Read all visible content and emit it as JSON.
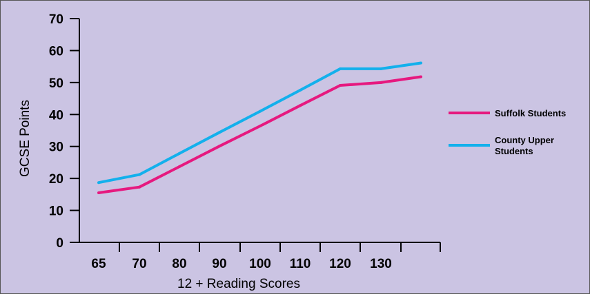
{
  "chart_data": {
    "type": "line",
    "x_tick_labels": [
      "65",
      "70",
      "80",
      "90",
      "100",
      "110",
      "120",
      "130"
    ],
    "x": [
      65,
      70,
      80,
      90,
      100,
      110,
      120,
      130,
      140
    ],
    "y_ticks": [
      0,
      10,
      20,
      30,
      40,
      50,
      60,
      70
    ],
    "ylim": [
      0,
      70
    ],
    "xlabel": "12 + Reading Scores",
    "ylabel": "GCSE Points",
    "legend_position": "right",
    "grid": false,
    "background": "#cbc4e3",
    "series": [
      {
        "name": "Suffolk Students",
        "legend_lines": [
          "Suffolk Students"
        ],
        "color": "#e6197f",
        "values": [
          15.5,
          17.3,
          23.7,
          30.1,
          36.4,
          42.8,
          49.1,
          50,
          51.8
        ]
      },
      {
        "name": "County Upper Students",
        "legend_lines": [
          "County Upper",
          "Students"
        ],
        "color": "#13b0ec",
        "values": [
          18.7,
          21.2,
          27.8,
          34.4,
          41.0,
          47.6,
          54.3,
          54.3,
          56.1
        ]
      }
    ]
  }
}
